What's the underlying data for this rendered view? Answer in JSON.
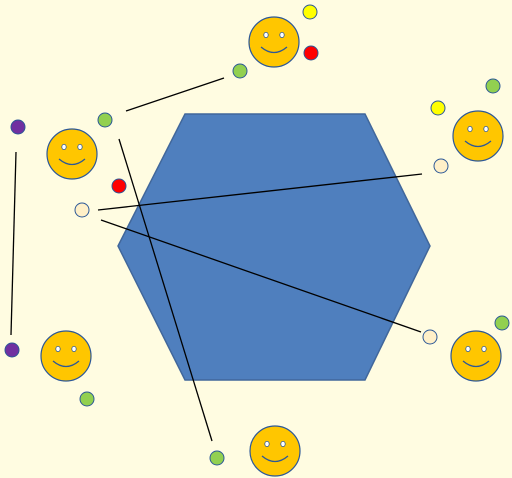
{
  "scene": {
    "type": "board-game",
    "board_shape": "hexagon",
    "background_color": "#FFFCE1",
    "board_color": "#4F7FBE",
    "board_outline_color": "#41679B",
    "smiley_face_color": "#FFC600",
    "smiley_outline_color": "#2C5897",
    "smiley_count": 6,
    "peg_colors": {
      "yellow": "#FFFF00",
      "red": "#FF0000",
      "green": "#92D050",
      "purple": "#7030A0",
      "cream": "#FFF0C8"
    },
    "peg_outline_color": "#2C5897",
    "link_color": "#000000",
    "link_count": 5
  }
}
